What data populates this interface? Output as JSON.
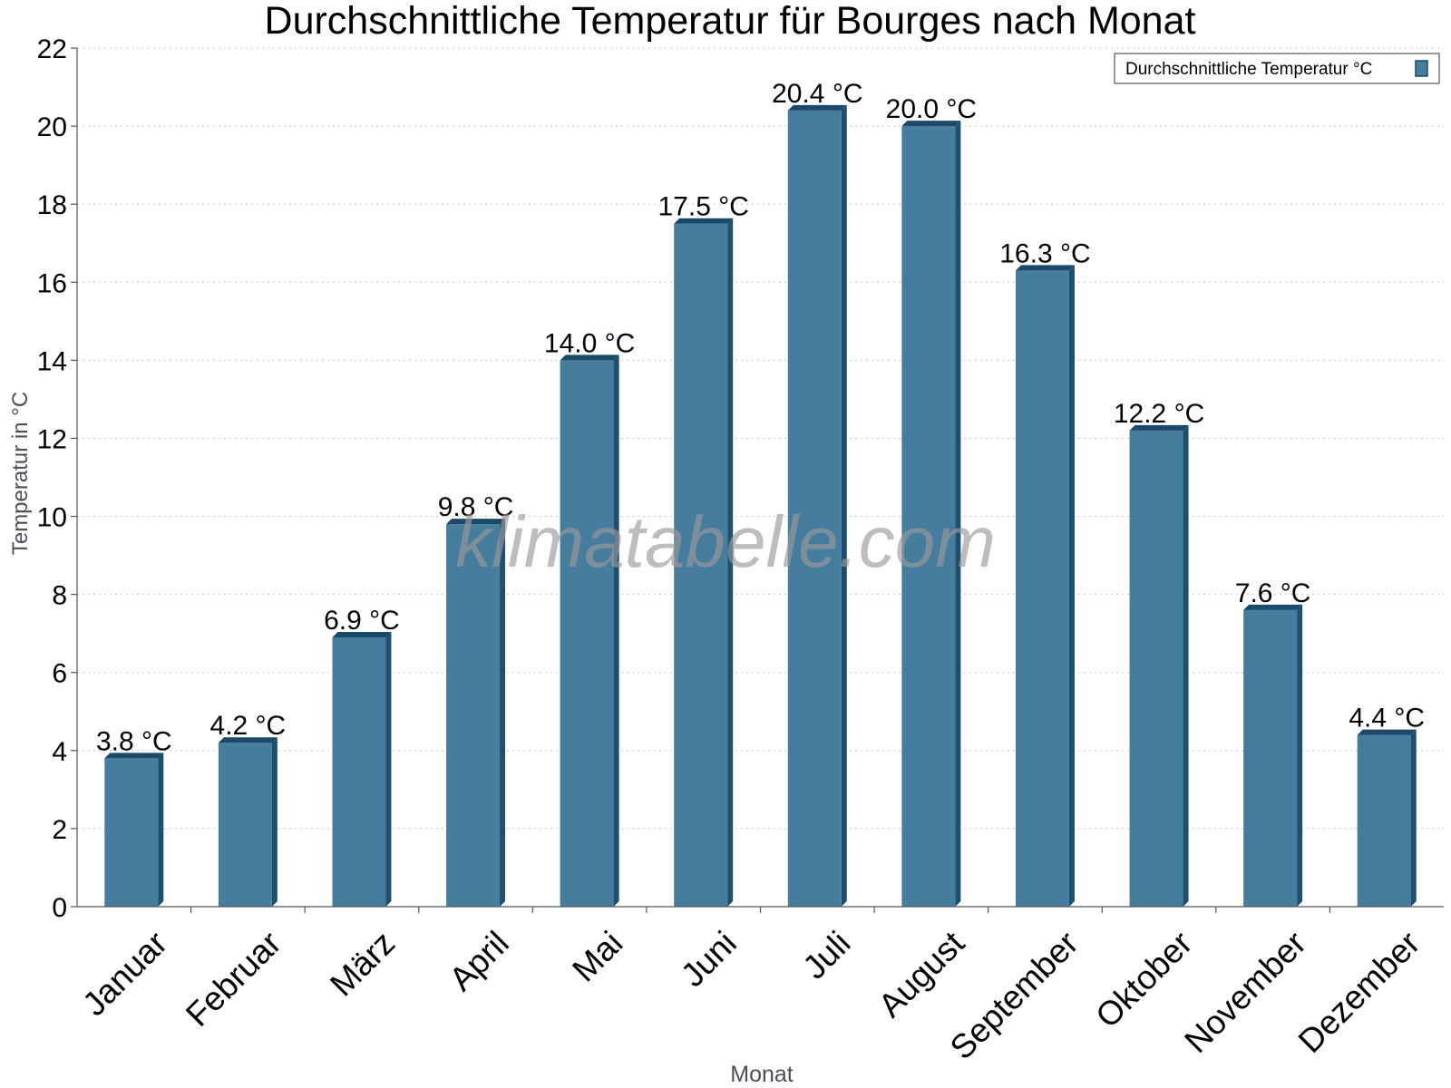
{
  "chart_data": {
    "type": "bar",
    "title": "Durchschnittliche Temperatur für Bourges nach Monat",
    "xlabel": "Monat",
    "ylabel": "Temperatur in °C",
    "categories": [
      "Januar",
      "Februar",
      "März",
      "April",
      "Mai",
      "Juni",
      "Juli",
      "August",
      "September",
      "Oktober",
      "November",
      "Dezember"
    ],
    "series": [
      {
        "name": "Durchschnittliche Temperatur °C",
        "values": [
          3.8,
          4.2,
          6.9,
          9.8,
          14.0,
          17.5,
          20.4,
          20.0,
          16.3,
          12.2,
          7.6,
          4.4
        ],
        "labels": [
          "3.8 °C",
          "4.2 °C",
          "6.9 °C",
          "9.8 °C",
          "14.0 °C",
          "17.5 °C",
          "20.4 °C",
          "20.0 °C",
          "16.3 °C",
          "12.2 °C",
          "7.6 °C",
          "4.4 °C"
        ]
      }
    ],
    "ylim": [
      0,
      22
    ],
    "yticks": [
      0,
      2,
      4,
      6,
      8,
      10,
      12,
      14,
      16,
      18,
      20,
      22
    ],
    "grid": true,
    "legend_position": "top-right",
    "watermark": "klimatabelle.com",
    "colors": {
      "bar_fill": "#467c9e",
      "bar_side": "#1f4f6f",
      "bar_top": "#1b4a68",
      "grid": "#c8c8c8",
      "axis": "#555555",
      "watermark": "#9a9a9a"
    }
  }
}
